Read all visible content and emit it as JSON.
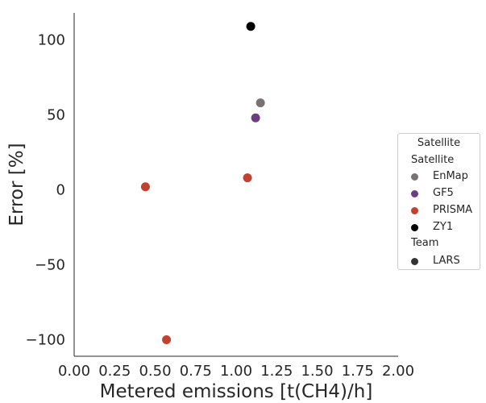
{
  "chart_data": {
    "type": "scatter",
    "xlabel": "Metered emissions [t(CH4)/h]",
    "ylabel": "Error [%]",
    "xlim": [
      0.0,
      2.0
    ],
    "ylim": [
      -111,
      118
    ],
    "x_ticks": [
      "0.00",
      "0.25",
      "0.50",
      "0.75",
      "1.00",
      "1.25",
      "1.50",
      "1.75",
      "2.00"
    ],
    "x_tick_values": [
      0.0,
      0.25,
      0.5,
      0.75,
      1.0,
      1.25,
      1.5,
      1.75,
      2.0
    ],
    "y_ticks": [
      "100",
      "50",
      "0",
      "−50",
      "−100"
    ],
    "y_tick_values": [
      100,
      50,
      0,
      -50,
      -100
    ],
    "grid": false,
    "legend_placement": "right",
    "colors": {
      "EnMap": "#7a7272",
      "GF5": "#6c3d7f",
      "PRISMA": "#c2412f",
      "ZY1": "#000000",
      "LARS": "#333333"
    },
    "series": [
      {
        "name": "EnMap",
        "x": [
          1.15
        ],
        "y": [
          58
        ]
      },
      {
        "name": "GF5",
        "x": [
          1.12
        ],
        "y": [
          48
        ]
      },
      {
        "name": "PRISMA",
        "x": [
          0.44,
          0.57,
          1.07
        ],
        "y": [
          2,
          -100,
          8
        ]
      },
      {
        "name": "ZY1",
        "x": [
          1.09
        ],
        "y": [
          109
        ]
      }
    ],
    "legend": {
      "title": "Satellite",
      "sections": [
        {
          "heading": "Satellite",
          "items": [
            "EnMap",
            "GF5",
            "PRISMA",
            "ZY1"
          ]
        },
        {
          "heading": "Team",
          "items": [
            "LARS"
          ]
        }
      ]
    }
  }
}
